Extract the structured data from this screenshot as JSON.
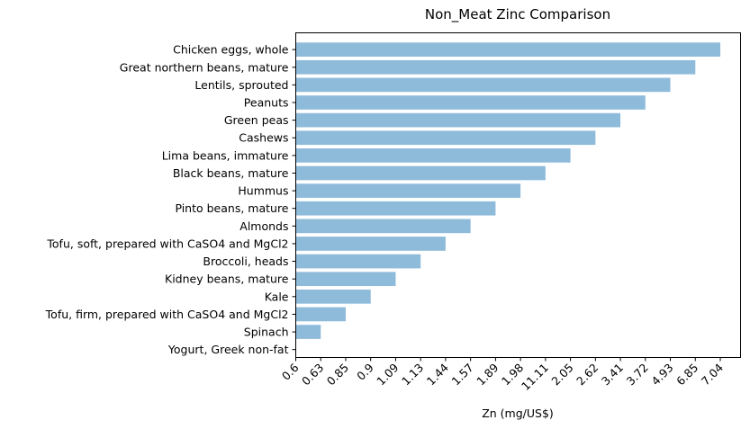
{
  "chart_data": {
    "type": "bar",
    "orientation": "horizontal",
    "title": "Non_Meat Zinc Comparison",
    "xlabel": "Zn (mg/US$)",
    "ylabel": "",
    "categories": [
      "Chicken eggs, whole",
      "Great northern beans, mature",
      "Lentils, sprouted",
      "Peanuts",
      "Green peas",
      "Cashews",
      "Lima beans, immature",
      "Black beans, mature",
      "Hummus",
      "Pinto beans, mature",
      "Almonds",
      "Tofu, soft, prepared with CaSO4 and MgCl2",
      "Broccoli, heads",
      "Kidney beans, mature",
      "Kale",
      "Tofu, firm, prepared with CaSO4 and MgCl2",
      "Spinach",
      "Yogurt, Greek non-fat"
    ],
    "values": [
      7.04,
      6.85,
      4.93,
      3.72,
      3.41,
      2.62,
      2.05,
      11.11,
      1.98,
      1.89,
      1.57,
      1.44,
      1.13,
      1.09,
      0.9,
      0.85,
      0.63,
      0.6
    ],
    "x_tick_labels": [
      "0.6",
      "0.63",
      "0.85",
      "0.9",
      "1.09",
      "1.13",
      "1.44",
      "1.57",
      "1.89",
      "1.98",
      "11.11",
      "2.05",
      "2.62",
      "3.41",
      "3.72",
      "4.93",
      "6.85",
      "7.04"
    ],
    "bar_color": "#8fbbdb",
    "grid": false,
    "legend": "none"
  }
}
